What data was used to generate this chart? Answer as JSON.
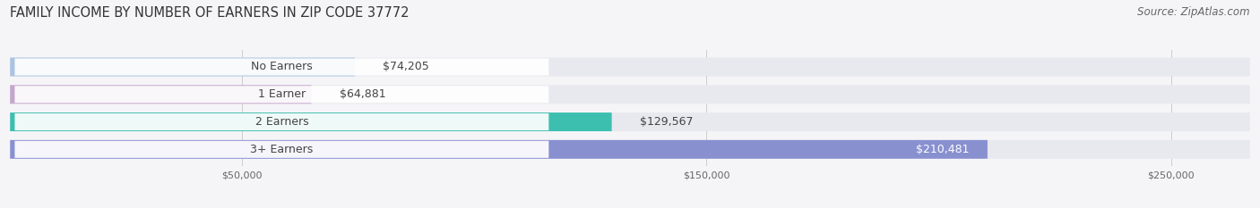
{
  "title": "FAMILY INCOME BY NUMBER OF EARNERS IN ZIP CODE 37772",
  "source": "Source: ZipAtlas.com",
  "categories": [
    "No Earners",
    "1 Earner",
    "2 Earners",
    "3+ Earners"
  ],
  "values": [
    74205,
    64881,
    129567,
    210481
  ],
  "bar_colors": [
    "#aac4e0",
    "#c4a8cc",
    "#3dbfb0",
    "#8890d0"
  ],
  "label_colors": [
    "#333333",
    "#333333",
    "#333333",
    "#ffffff"
  ],
  "value_labels": [
    "$74,205",
    "$64,881",
    "$129,567",
    "$210,481"
  ],
  "xlim": [
    0,
    267000
  ],
  "xticks": [
    50000,
    150000,
    250000
  ],
  "xtick_labels": [
    "$50,000",
    "$150,000",
    "$250,000"
  ],
  "background_color": "#f5f5f8",
  "bar_background_color": "#e8e8ef",
  "title_fontsize": 10.5,
  "source_fontsize": 8.5,
  "bar_height": 0.68,
  "bar_label_fontsize": 9,
  "value_label_fontsize": 9
}
